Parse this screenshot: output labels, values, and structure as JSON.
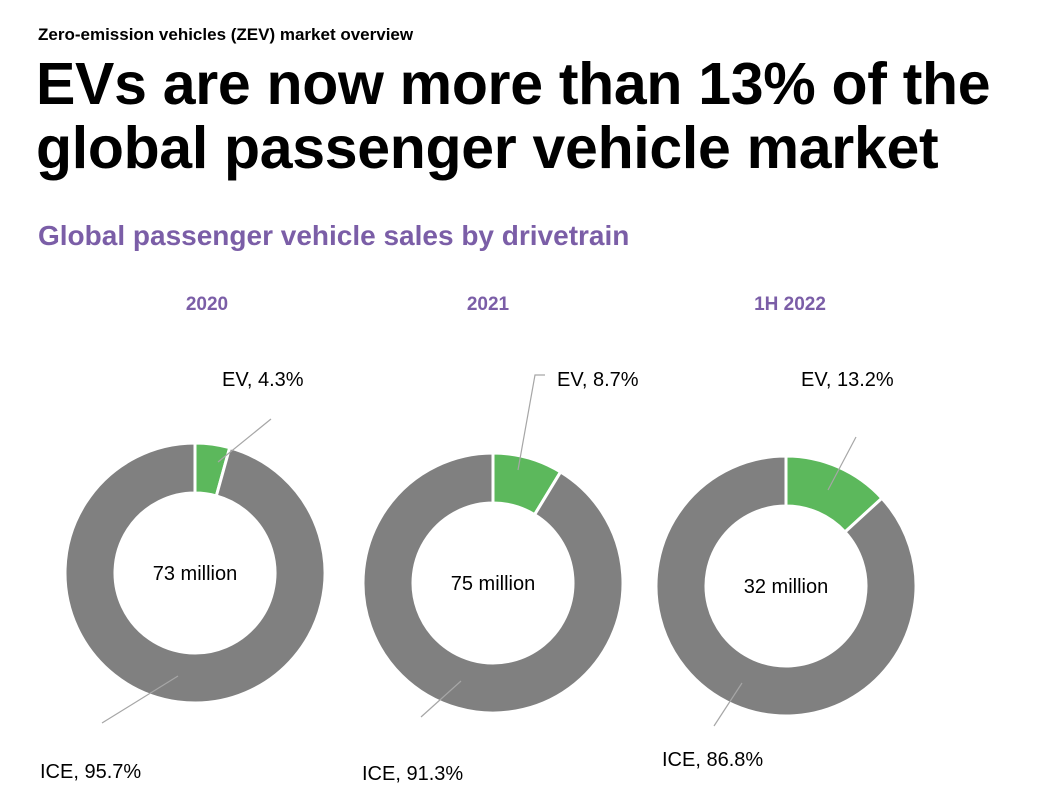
{
  "header": {
    "kicker": "Zero-emission vehicles (ZEV) market overview",
    "headline_line1": "EVs are now more than 13% of the",
    "headline_line2": "global passenger vehicle market"
  },
  "chart_data": {
    "type": "pie",
    "title": "Global passenger vehicle sales by drivetrain",
    "colors": {
      "EV": "#5cb85c",
      "ICE": "#808080"
    },
    "charts": [
      {
        "period": "2020",
        "total_label": "73 million",
        "slices": [
          {
            "name": "EV",
            "value": 4.3,
            "label": "EV, 4.3%"
          },
          {
            "name": "ICE",
            "value": 95.7,
            "label": "ICE, 95.7%"
          }
        ]
      },
      {
        "period": "2021",
        "total_label": "75 million",
        "slices": [
          {
            "name": "EV",
            "value": 8.7,
            "label": "EV, 8.7%"
          },
          {
            "name": "ICE",
            "value": 91.3,
            "label": "ICE, 91.3%"
          }
        ]
      },
      {
        "period": "1H 2022",
        "total_label": "32 million",
        "slices": [
          {
            "name": "EV",
            "value": 13.2,
            "label": "EV, 13.2%"
          },
          {
            "name": "ICE",
            "value": 86.8,
            "label": "ICE, 86.8%"
          }
        ]
      }
    ]
  }
}
